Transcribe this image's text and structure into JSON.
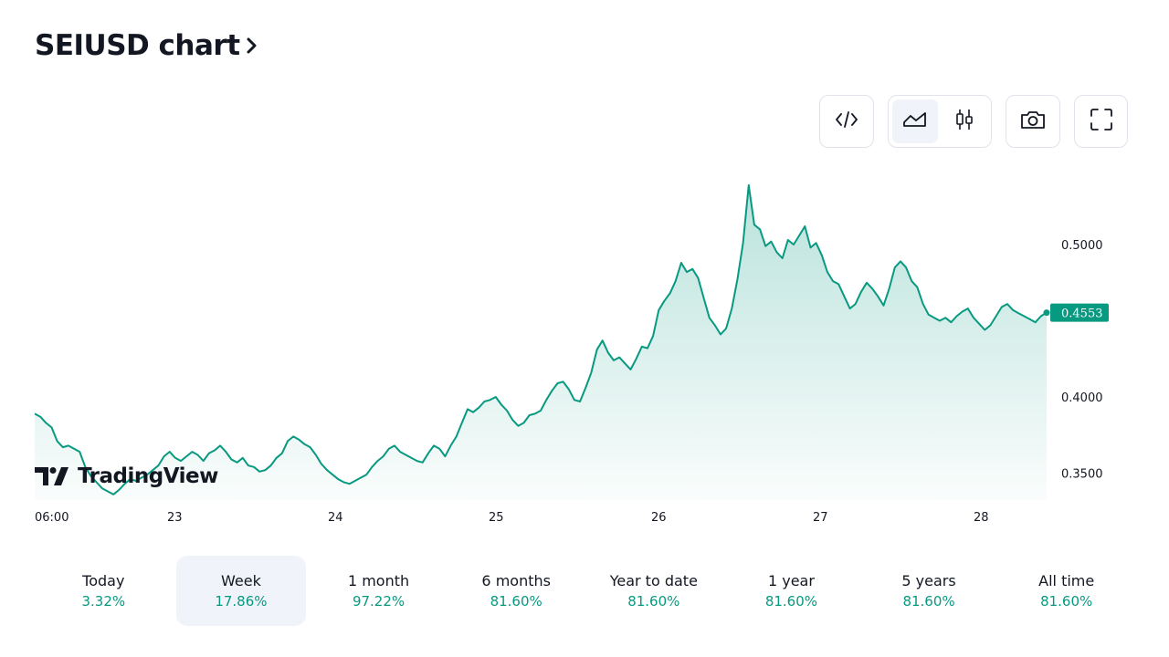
{
  "header": {
    "title": "SEIUSD chart"
  },
  "toolbar": {
    "buttons": [
      {
        "icon": "embed-code-icon"
      },
      {
        "icon": "area-chart-icon",
        "active": true
      },
      {
        "icon": "candlestick-icon"
      },
      {
        "icon": "camera-icon"
      },
      {
        "icon": "fullscreen-icon"
      }
    ]
  },
  "watermark": {
    "text": "TradingView"
  },
  "chart_data": {
    "type": "area",
    "color": "#089981",
    "grid": false,
    "legend": "none",
    "title": "",
    "xlabel": "",
    "ylabel": "",
    "x_ticks": [
      "06:00",
      "23",
      "24",
      "25",
      "26",
      "27",
      "28"
    ],
    "y_ticks": [
      "0.5000",
      "0.4000",
      "0.3500"
    ],
    "ylim": [
      0.327,
      0.547
    ],
    "last_price": "0.4553",
    "series": [
      {
        "values": [
          0.389,
          0.387,
          0.383,
          0.38,
          0.371,
          0.367,
          0.368,
          0.366,
          0.364,
          0.354,
          0.348,
          0.344,
          0.34,
          0.338,
          0.336,
          0.339,
          0.343,
          0.346,
          0.345,
          0.347,
          0.349,
          0.352,
          0.355,
          0.361,
          0.364,
          0.36,
          0.358,
          0.361,
          0.364,
          0.362,
          0.358,
          0.363,
          0.365,
          0.368,
          0.364,
          0.359,
          0.357,
          0.36,
          0.355,
          0.354,
          0.351,
          0.352,
          0.355,
          0.36,
          0.363,
          0.371,
          0.374,
          0.372,
          0.369,
          0.367,
          0.362,
          0.356,
          0.352,
          0.349,
          0.346,
          0.344,
          0.343,
          0.345,
          0.347,
          0.349,
          0.354,
          0.358,
          0.361,
          0.366,
          0.368,
          0.364,
          0.362,
          0.36,
          0.358,
          0.357,
          0.363,
          0.368,
          0.366,
          0.361,
          0.368,
          0.374,
          0.383,
          0.392,
          0.39,
          0.393,
          0.397,
          0.398,
          0.4,
          0.395,
          0.391,
          0.385,
          0.381,
          0.383,
          0.388,
          0.389,
          0.391,
          0.398,
          0.404,
          0.409,
          0.41,
          0.405,
          0.398,
          0.397,
          0.406,
          0.416,
          0.431,
          0.437,
          0.429,
          0.424,
          0.426,
          0.422,
          0.418,
          0.425,
          0.433,
          0.432,
          0.44,
          0.457,
          0.463,
          0.468,
          0.476,
          0.488,
          0.482,
          0.484,
          0.478,
          0.465,
          0.452,
          0.447,
          0.441,
          0.445,
          0.458,
          0.477,
          0.501,
          0.539,
          0.513,
          0.51,
          0.499,
          0.502,
          0.495,
          0.491,
          0.503,
          0.5,
          0.506,
          0.512,
          0.498,
          0.501,
          0.493,
          0.482,
          0.476,
          0.474,
          0.466,
          0.458,
          0.461,
          0.469,
          0.475,
          0.471,
          0.466,
          0.46,
          0.471,
          0.485,
          0.489,
          0.485,
          0.476,
          0.472,
          0.461,
          0.454,
          0.452,
          0.45,
          0.452,
          0.449,
          0.453,
          0.456,
          0.458,
          0.452,
          0.448,
          0.444,
          0.447,
          0.453,
          0.459,
          0.461,
          0.457,
          0.455,
          0.453,
          0.451,
          0.449,
          0.453,
          0.4553
        ]
      }
    ]
  },
  "periods": [
    {
      "label": "Today",
      "value": "3.32%"
    },
    {
      "label": "Week",
      "value": "17.86%",
      "active": true
    },
    {
      "label": "1 month",
      "value": "97.22%"
    },
    {
      "label": "6 months",
      "value": "81.60%"
    },
    {
      "label": "Year to date",
      "value": "81.60%"
    },
    {
      "label": "1 year",
      "value": "81.60%"
    },
    {
      "label": "5 years",
      "value": "81.60%"
    },
    {
      "label": "All time",
      "value": "81.60%"
    }
  ]
}
